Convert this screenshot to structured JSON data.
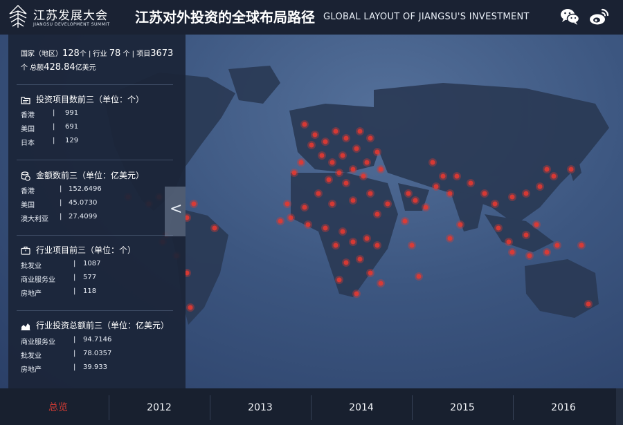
{
  "header": {
    "logo_cn": "江苏发展大会",
    "logo_en": "JIANGSU DEVELOPMENT SUMMIT",
    "title_cn": "江苏对外投资的全球布局路径",
    "title_en": "GLOBAL LAYOUT OF JIANGSU'S  INVESTMENT",
    "share_icons": [
      "wechat-icon",
      "weibo-icon"
    ]
  },
  "summary": {
    "countries_label": "国家（地区）",
    "countries_value": "128",
    "countries_unit": "个 | 行业",
    "industries_value": "78",
    "industries_unit": "个 | 项目",
    "projects_value": "3673",
    "projects_unit": "个 总额",
    "amount_value": "428.84",
    "amount_unit": "亿美元"
  },
  "sections": [
    {
      "title": "投资项目数前三（单位：个）",
      "icon": "folder-icon",
      "rows": [
        {
          "key": "香港",
          "value": "991"
        },
        {
          "key": "美国",
          "value": "691"
        },
        {
          "key": "日本",
          "value": "129"
        }
      ]
    },
    {
      "title": "金额数前三（单位：亿美元）",
      "icon": "coins-icon",
      "rows": [
        {
          "key": "香港",
          "value": "152.6496"
        },
        {
          "key": "美国",
          "value": "45.0730"
        },
        {
          "key": "澳大利亚",
          "value": "27.4099"
        }
      ]
    },
    {
      "title": "行业项目前三（单位：个）",
      "icon": "briefcase-icon",
      "rows": [
        {
          "key": "批发业",
          "value": "1087"
        },
        {
          "key": "商业服务业",
          "value": "577"
        },
        {
          "key": "房地产",
          "value": "118"
        }
      ]
    },
    {
      "title": "行业投资总额前三（单位：亿美元）",
      "icon": "area-chart-icon",
      "rows": [
        {
          "key": "商业服务业",
          "value": "94.7146"
        },
        {
          "key": "批发业",
          "value": "78.0357"
        },
        {
          "key": "房地产",
          "value": "39.933"
        }
      ]
    }
  ],
  "separator": "|",
  "collapse_glyph": "<",
  "tabs": [
    {
      "label": "总览",
      "active": true
    },
    {
      "label": "2012",
      "active": false
    },
    {
      "label": "2013",
      "active": false
    },
    {
      "label": "2014",
      "active": false
    },
    {
      "label": "2015",
      "active": false
    },
    {
      "label": "2016",
      "active": false
    }
  ],
  "colors": {
    "accent": "#cf3b34",
    "marker": "#e23a32",
    "land": "#2a3a55",
    "panel": "#1b2538",
    "header": "#1a2233"
  }
}
